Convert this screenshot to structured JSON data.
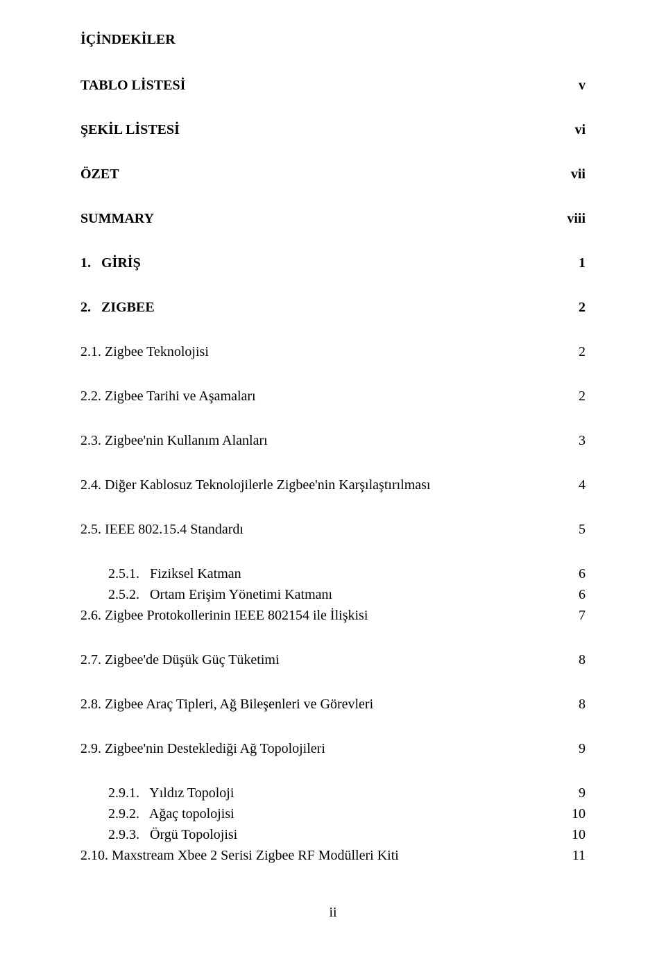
{
  "title": "İÇİNDEKİLER",
  "entries": [
    {
      "label": "TABLO LİSTESİ",
      "page": "v",
      "bold": true,
      "indent": 0,
      "gap": "lg"
    },
    {
      "label": "ŞEKİL LİSTESİ",
      "page": "vi",
      "bold": true,
      "indent": 0,
      "gap": "lg"
    },
    {
      "label": "ÖZET",
      "page": "vii",
      "bold": true,
      "indent": 0,
      "gap": "lg"
    },
    {
      "label": "SUMMARY",
      "page": "viii",
      "bold": true,
      "indent": 0,
      "gap": "lg"
    },
    {
      "label": "1.   GİRİŞ",
      "page": "1",
      "bold": true,
      "indent": 0,
      "gap": "lg"
    },
    {
      "label": "2.   ZIGBEE",
      "page": "2",
      "bold": true,
      "indent": 0,
      "gap": "lg"
    },
    {
      "label": "2.1. Zigbee Teknolojisi",
      "page": "2",
      "bold": false,
      "indent": 0,
      "gap": "md"
    },
    {
      "label": "2.2. Zigbee Tarihi ve Aşamaları",
      "page": "2",
      "bold": false,
      "indent": 0,
      "gap": "md"
    },
    {
      "label": "2.3. Zigbee'nin Kullanım Alanları",
      "page": "3",
      "bold": false,
      "indent": 0,
      "gap": "md"
    },
    {
      "label": "2.4. Diğer Kablosuz Teknolojilerle Zigbee'nin Karşılaştırılması",
      "page": "4",
      "bold": false,
      "indent": 0,
      "gap": "md"
    },
    {
      "label": "2.5. IEEE 802.15.4 Standardı",
      "page": "5",
      "bold": false,
      "indent": 0,
      "gap": "md"
    },
    {
      "label": "2.5.1.   Fiziksel Katman",
      "page": "6",
      "bold": false,
      "indent": 1,
      "gap": "sm"
    },
    {
      "label": "2.5.2.   Ortam Erişim Yönetimi Katmanı",
      "page": "6",
      "bold": false,
      "indent": 1,
      "gap": "sm"
    },
    {
      "label": "2.6. Zigbee Protokollerinin IEEE 802154 ile İlişkisi",
      "page": "7",
      "bold": false,
      "indent": 0,
      "gap": "md"
    },
    {
      "label": "2.7. Zigbee'de Düşük Güç Tüketimi",
      "page": "8",
      "bold": false,
      "indent": 0,
      "gap": "md"
    },
    {
      "label": "2.8. Zigbee Araç Tipleri, Ağ Bileşenleri ve Görevleri",
      "page": "8",
      "bold": false,
      "indent": 0,
      "gap": "md"
    },
    {
      "label": "2.9. Zigbee'nin Desteklediği Ağ Topolojileri",
      "page": "9",
      "bold": false,
      "indent": 0,
      "gap": "md"
    },
    {
      "label": "2.9.1.   Yıldız Topoloji",
      "page": "9",
      "bold": false,
      "indent": 1,
      "gap": "sm"
    },
    {
      "label": "2.9.2.   Ağaç topolojisi",
      "page": "10",
      "bold": false,
      "indent": 1,
      "gap": "sm"
    },
    {
      "label": "2.9.3.   Örgü Topolojisi",
      "page": "10",
      "bold": false,
      "indent": 1,
      "gap": "sm"
    },
    {
      "label": "2.10. Maxstream Xbee 2 Serisi Zigbee RF Modülleri Kiti",
      "page": "11",
      "bold": false,
      "indent": 0,
      "gap": "md"
    }
  ],
  "pageNumber": "ii"
}
